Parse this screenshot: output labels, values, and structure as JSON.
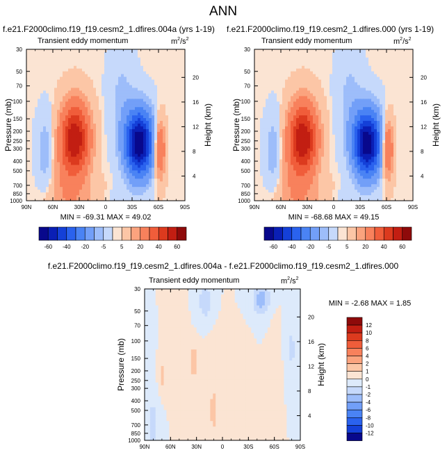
{
  "page_title": "ANN",
  "panels": [
    {
      "case_title": "f.e21.F2000climo.f19_f19.cesm2_1.dfires.004a (yrs 1-19)",
      "var_name": "Transient eddy momentum",
      "units_base": "m",
      "units_exp1": "2",
      "units_mid": "/s",
      "units_exp2": "2",
      "stats": "MIN = -69.31   MAX =  49.02"
    },
    {
      "case_title": "f.e21.F2000climo.f19_f19.cesm2_1.dfires.000 (yrs 1-19)",
      "var_name": "Transient eddy momentum",
      "units_base": "m",
      "units_exp1": "2",
      "units_mid": "/s",
      "units_exp2": "2",
      "stats": "MIN = -68.68   MAX =  49.15"
    },
    {
      "case_title": "f.e21.F2000climo.f19_f19.cesm2_1.dfires.004a - f.e21.F2000climo.f19_f19.cesm2_1.dfires.000",
      "var_name": "Transient eddy momentum",
      "units_base": "m",
      "units_exp1": "2",
      "units_mid": "/s",
      "units_exp2": "2",
      "stats": "MIN = -2.68   MAX =   1.85"
    }
  ],
  "chart_data": [
    {
      "type": "heatmap",
      "title": "f.e21.F2000climo.f19_f19.cesm2_1.dfires.004a (yrs 1-19)",
      "ylabel": "Pressure (mb)",
      "ylabel_right": "Height (km)",
      "x_ticks": [
        "90N",
        "60N",
        "30N",
        "0",
        "30S",
        "60S",
        "90S"
      ],
      "x_values": [
        90,
        60,
        30,
        0,
        -30,
        -60,
        -90
      ],
      "y_ticks": [
        "30",
        "50",
        "70",
        "100",
        "150",
        "200",
        "250",
        "300",
        "400",
        "500",
        "700",
        "850",
        "1000"
      ],
      "y_values": [
        30,
        50,
        70,
        100,
        150,
        200,
        250,
        300,
        400,
        500,
        700,
        850,
        1000
      ],
      "y_scale": "log",
      "height_ticks": [
        "4",
        "8",
        "12",
        "16",
        "20"
      ],
      "height_values": [
        4,
        8,
        12,
        16,
        20
      ],
      "min": -69.31,
      "max": 49.02,
      "levels": [
        "-60",
        "-40",
        "-20",
        "-5",
        "5",
        "20",
        "40",
        "60"
      ],
      "features": [
        {
          "lat": 35,
          "p": 240,
          "value": 49.02
        },
        {
          "lat": -38,
          "p": 260,
          "value": -69.31
        },
        {
          "lat": -60,
          "p": 300,
          "value": 25
        },
        {
          "lat": 65,
          "p": 300,
          "value": -8
        }
      ]
    },
    {
      "type": "heatmap",
      "title": "f.e21.F2000climo.f19_f19.cesm2_1.dfires.000 (yrs 1-19)",
      "ylabel": "Pressure (mb)",
      "ylabel_right": "Height (km)",
      "x_ticks": [
        "90N",
        "60N",
        "30N",
        "0",
        "30S",
        "60S",
        "90S"
      ],
      "x_values": [
        90,
        60,
        30,
        0,
        -30,
        -60,
        -90
      ],
      "y_ticks": [
        "30",
        "50",
        "70",
        "100",
        "150",
        "200",
        "250",
        "300",
        "400",
        "500",
        "700",
        "850",
        "1000"
      ],
      "y_values": [
        30,
        50,
        70,
        100,
        150,
        200,
        250,
        300,
        400,
        500,
        700,
        850,
        1000
      ],
      "y_scale": "log",
      "height_ticks": [
        "4",
        "8",
        "12",
        "16",
        "20"
      ],
      "height_values": [
        4,
        8,
        12,
        16,
        20
      ],
      "min": -68.68,
      "max": 49.15,
      "levels": [
        "-60",
        "-40",
        "-20",
        "-5",
        "5",
        "20",
        "40",
        "60"
      ],
      "features": [
        {
          "lat": 35,
          "p": 240,
          "value": 49.15
        },
        {
          "lat": -38,
          "p": 260,
          "value": -68.68
        },
        {
          "lat": -60,
          "p": 300,
          "value": 25
        },
        {
          "lat": 65,
          "p": 300,
          "value": -8
        }
      ]
    },
    {
      "type": "heatmap",
      "title": "f.e21.F2000climo.f19_f19.cesm2_1.dfires.004a - f.e21.F2000climo.f19_f19.cesm2_1.dfires.000",
      "ylabel": "Pressure (mb)",
      "ylabel_right": "Height (km)",
      "x_ticks": [
        "90N",
        "60N",
        "30N",
        "0",
        "30S",
        "60S",
        "90S"
      ],
      "x_values": [
        90,
        60,
        30,
        0,
        -30,
        -60,
        -90
      ],
      "y_ticks": [
        "30",
        "50",
        "70",
        "100",
        "150",
        "200",
        "250",
        "300",
        "400",
        "500",
        "700",
        "850",
        "1000"
      ],
      "y_values": [
        30,
        50,
        70,
        100,
        150,
        200,
        250,
        300,
        400,
        500,
        700,
        850,
        1000
      ],
      "y_scale": "log",
      "height_ticks": [
        "4",
        "8",
        "12",
        "16",
        "20"
      ],
      "height_values": [
        4,
        8,
        12,
        16,
        20
      ],
      "min": -2.68,
      "max": 1.85,
      "levels": [
        "12",
        "10",
        "8",
        "6",
        "4",
        "2",
        "1",
        "0",
        "-1",
        "-2",
        "-4",
        "-6",
        "-8",
        "-10",
        "-12"
      ],
      "features": [
        {
          "lat": 33,
          "p": 155,
          "value": 1.85
        },
        {
          "lat": 70,
          "p": 230,
          "value": 1.2
        },
        {
          "lat": -45,
          "p": 40,
          "value": -2.68
        },
        {
          "lat": 5,
          "p": 500,
          "value": 0.5
        }
      ]
    }
  ],
  "colorbar_main": {
    "labels": [
      "-60",
      "-40",
      "-20",
      "-5",
      "5",
      "20",
      "40",
      "60"
    ],
    "colors": [
      "#08088c",
      "#0a1fb5",
      "#1440d8",
      "#2a62ee",
      "#4a83f4",
      "#729ff8",
      "#9dbdfa",
      "#c6d9fb",
      "#fbe4d3",
      "#fcc6a6",
      "#fba37e",
      "#f8815c",
      "#f05d3a",
      "#dc3a1e",
      "#c21e12",
      "#8e0a0a"
    ]
  },
  "colorbar_diff": {
    "labels": [
      "12",
      "10",
      "8",
      "6",
      "4",
      "2",
      "1",
      "0",
      "-1",
      "-2",
      "-4",
      "-6",
      "-8",
      "-10",
      "-12"
    ],
    "colors": [
      "#8e0a0a",
      "#c21e12",
      "#dc3a1e",
      "#f05d3a",
      "#f8815c",
      "#fba37e",
      "#fcc6a6",
      "#fbe4d3",
      "#ddeafb",
      "#c6d9fb",
      "#9dbdfa",
      "#729ff8",
      "#4a83f4",
      "#2a62ee",
      "#1440d8",
      "#08088c"
    ]
  }
}
